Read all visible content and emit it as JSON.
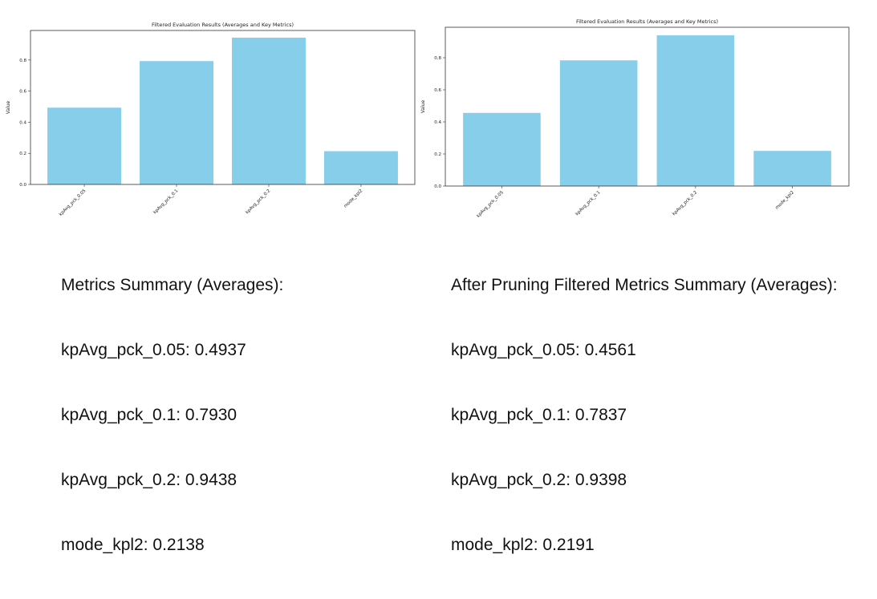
{
  "charts": [
    {
      "chart_data": {
        "type": "bar",
        "title": "Filtered Evaluation Results (Averages and Key Metrics)",
        "xlabel": "",
        "ylabel": "Value",
        "categories": [
          "kpAvg_pck_0.05",
          "kpAvg_pck_0.1",
          "kpAvg_pck_0.2",
          "mode_kpl2"
        ],
        "values": [
          0.4937,
          0.793,
          0.9438,
          0.2138
        ],
        "ylim": [
          0,
          0.99
        ],
        "yticks": [
          "0.0",
          "0.2",
          "0.4",
          "0.6",
          "0.8"
        ],
        "bar_color": "#87CEEB",
        "grid": false
      },
      "summary": {
        "heading": "Metrics Summary (Averages):",
        "lines": [
          "kpAvg_pck_0.05: 0.4937",
          "kpAvg_pck_0.1: 0.7930",
          "kpAvg_pck_0.2: 0.9438",
          "mode_kpl2: 0.2138"
        ]
      }
    },
    {
      "chart_data": {
        "type": "bar",
        "title": "Filtered Evaluation Results (Averages and Key Metrics)",
        "xlabel": "",
        "ylabel": "Value",
        "categories": [
          "kpAvg_pck_0.05",
          "kpAvg_pck_0.1",
          "kpAvg_pck_0.2",
          "mode_kpl2"
        ],
        "values": [
          0.4561,
          0.7837,
          0.9398,
          0.2191
        ],
        "ylim": [
          0,
          0.99
        ],
        "yticks": [
          "0.0",
          "0.2",
          "0.4",
          "0.6",
          "0.8"
        ],
        "bar_color": "#87CEEB",
        "grid": false
      },
      "summary": {
        "heading": "After Pruning Filtered Metrics Summary (Averages):",
        "lines": [
          "kpAvg_pck_0.05: 0.4561",
          "kpAvg_pck_0.1: 0.7837",
          "kpAvg_pck_0.2: 0.9398",
          "mode_kpl2: 0.2191"
        ]
      }
    }
  ]
}
